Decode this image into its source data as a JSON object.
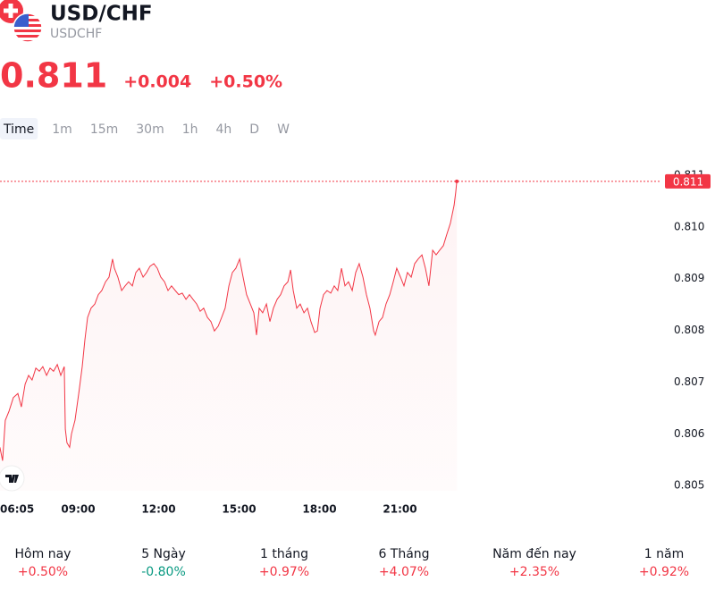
{
  "header": {
    "title": "USD/CHF",
    "symbol": "USDCHF"
  },
  "quote": {
    "price": "0.811",
    "change": "+0.004",
    "change_percent": "+0.50%"
  },
  "intervals": [
    "Time",
    "1m",
    "15m",
    "30m",
    "1h",
    "4h",
    "D",
    "W"
  ],
  "chart_data": {
    "type": "line",
    "color": "#f23645",
    "x": [
      6.08,
      6.18,
      6.28,
      6.42,
      6.58,
      6.75,
      6.88,
      7.02,
      7.15,
      7.28,
      7.42,
      7.55,
      7.68,
      7.82,
      7.95,
      8.08,
      8.22,
      8.35,
      8.48,
      8.52,
      8.58,
      8.68,
      8.75,
      8.88,
      9.02,
      9.15,
      9.25,
      9.35,
      9.48,
      9.62,
      9.75,
      9.88,
      10.02,
      10.15,
      10.28,
      10.35,
      10.48,
      10.62,
      10.75,
      10.88,
      11.02,
      11.15,
      11.28,
      11.42,
      11.55,
      11.68,
      11.82,
      11.95,
      12.08,
      12.22,
      12.35,
      12.48,
      12.62,
      12.75,
      12.88,
      13.02,
      13.15,
      13.28,
      13.42,
      13.55,
      13.68,
      13.82,
      13.95,
      14.08,
      14.22,
      14.35,
      14.48,
      14.62,
      14.75,
      14.88,
      15.02,
      15.15,
      15.28,
      15.42,
      15.55,
      15.65,
      15.75,
      15.88,
      16.02,
      16.15,
      16.28,
      16.42,
      16.55,
      16.68,
      16.82,
      16.92,
      17.02,
      17.15,
      17.28,
      17.42,
      17.55,
      17.68,
      17.82,
      17.92,
      18.02,
      18.15,
      18.28,
      18.42,
      18.55,
      18.68,
      18.82,
      18.95,
      19.08,
      19.22,
      19.35,
      19.48,
      19.62,
      19.75,
      19.88,
      20.02,
      20.08,
      20.22,
      20.35,
      20.48,
      20.62,
      20.75,
      20.88,
      21.02,
      21.15,
      21.28,
      21.42,
      21.55,
      21.68,
      21.82,
      21.95,
      22.08,
      22.22,
      22.35,
      22.48,
      22.62,
      22.75,
      22.88,
      23.02,
      23.08,
      23.12
    ],
    "values": [
      0.80574,
      0.80548,
      0.80626,
      0.80644,
      0.8067,
      0.80678,
      0.80652,
      0.80696,
      0.80713,
      0.80704,
      0.80727,
      0.80721,
      0.8073,
      0.80713,
      0.80727,
      0.80721,
      0.80734,
      0.80713,
      0.8073,
      0.80609,
      0.80583,
      0.80574,
      0.806,
      0.80626,
      0.80678,
      0.8073,
      0.80782,
      0.80825,
      0.80843,
      0.80851,
      0.80869,
      0.80877,
      0.80894,
      0.80903,
      0.80938,
      0.8092,
      0.80903,
      0.80877,
      0.80886,
      0.80894,
      0.80886,
      0.80912,
      0.8092,
      0.80903,
      0.80912,
      0.80924,
      0.80929,
      0.8092,
      0.80903,
      0.80894,
      0.80877,
      0.80886,
      0.80877,
      0.80869,
      0.80872,
      0.8086,
      0.80869,
      0.8086,
      0.80851,
      0.80837,
      0.80843,
      0.80825,
      0.80817,
      0.80799,
      0.80808,
      0.80825,
      0.80843,
      0.80886,
      0.80912,
      0.8092,
      0.80938,
      0.80903,
      0.80869,
      0.80851,
      0.80834,
      0.80791,
      0.80843,
      0.80834,
      0.80851,
      0.80817,
      0.80843,
      0.8086,
      0.80869,
      0.80886,
      0.80894,
      0.80917,
      0.80877,
      0.80843,
      0.80851,
      0.80834,
      0.80843,
      0.80817,
      0.80796,
      0.80799,
      0.80843,
      0.80869,
      0.80877,
      0.80872,
      0.80886,
      0.80877,
      0.8092,
      0.80886,
      0.80894,
      0.80877,
      0.80912,
      0.80929,
      0.80903,
      0.80869,
      0.80843,
      0.80799,
      0.80791,
      0.80817,
      0.80825,
      0.80851,
      0.80869,
      0.80894,
      0.8092,
      0.80903,
      0.80886,
      0.80912,
      0.80903,
      0.80929,
      0.80938,
      0.80946,
      0.8092,
      0.80886,
      0.80955,
      0.80946,
      0.80955,
      0.80964,
      0.80986,
      0.81007,
      0.81042,
      0.81067,
      0.81088
    ],
    "xlim": [
      6.0833,
      30.75
    ],
    "xticks": [
      {
        "value": 6.0833,
        "label": "06:05"
      },
      {
        "value": 9,
        "label": "09:00"
      },
      {
        "value": 12,
        "label": "12:00"
      },
      {
        "value": 15,
        "label": "15:00"
      },
      {
        "value": 18,
        "label": "18:00"
      },
      {
        "value": 21,
        "label": "21:00"
      }
    ],
    "ylim": [
      0.8049,
      0.8115
    ],
    "yticks": [
      0.805,
      0.806,
      0.807,
      0.808,
      0.809,
      {
        "value": 0.81,
        "label": "0.810"
      },
      0.811
    ]
  },
  "performance": [
    {
      "label": "Hôm nay",
      "value": "+0.50%"
    },
    {
      "label": "5 Ngày",
      "value": "-0.80%"
    },
    {
      "label": "1 tháng",
      "value": "+0.97%"
    },
    {
      "label": "6 Tháng",
      "value": "+4.07%"
    },
    {
      "label": "Năm đến nay",
      "value": "+2.35%"
    },
    {
      "label": "1 năm",
      "value": "+0.92%"
    }
  ]
}
